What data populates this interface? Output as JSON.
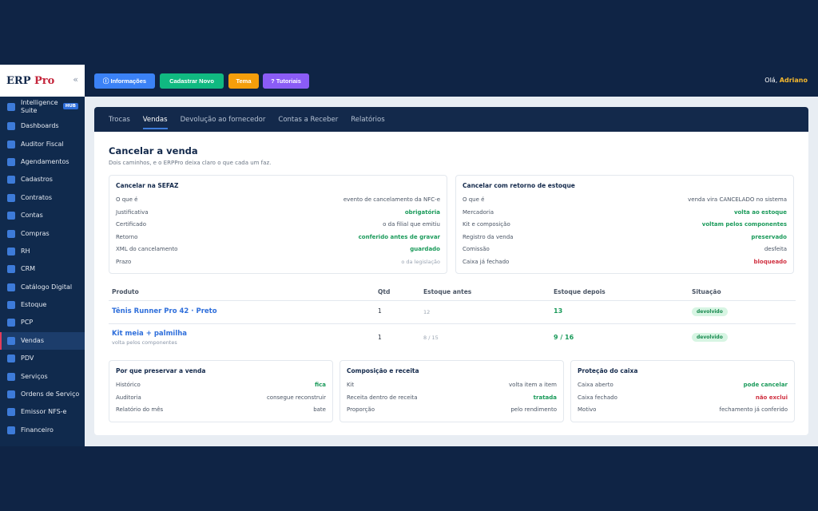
{
  "sidebar": {
    "logo_main": "ERP",
    "logo_accent": "Pro",
    "collapse_icon": "«",
    "hub_badge": "HUB",
    "items": [
      {
        "label": "Intelligence Suite"
      },
      {
        "label": "Dashboards"
      },
      {
        "label": "Auditor Fiscal"
      },
      {
        "label": "Agendamentos"
      },
      {
        "label": "Cadastros"
      },
      {
        "label": "Contratos"
      },
      {
        "label": "Contas"
      },
      {
        "label": "Compras"
      },
      {
        "label": "RH"
      },
      {
        "label": "CRM"
      },
      {
        "label": "Catálogo Digital"
      },
      {
        "label": "Estoque"
      },
      {
        "label": "PCP"
      },
      {
        "label": "Vendas"
      },
      {
        "label": "PDV"
      },
      {
        "label": "Serviços"
      },
      {
        "label": "Ordens de Serviço"
      },
      {
        "label": "Emissor NFS-e"
      },
      {
        "label": "Financeiro"
      }
    ]
  },
  "topbar": {
    "buttons": [
      {
        "label": "ⓘ Informações",
        "color": "#3b82f6"
      },
      {
        "label": "Cadastrar Novo",
        "color": "#10b981"
      },
      {
        "label": "Tema",
        "color": "#f59e0b"
      },
      {
        "label": "? Tutoriais",
        "color": "#8b5cf6"
      }
    ],
    "greeting": "Olá,",
    "user": "Adriano"
  },
  "tabs": [
    "Trocas",
    "Vendas",
    "Devolução ao fornecedor",
    "Contas a Receber",
    "Relatórios"
  ],
  "page": {
    "title": "Cancelar a venda",
    "subtitle": "Dois caminhos, e o ERPPro deixa claro o que cada um faz."
  },
  "sefaz": {
    "title": "Cancelar na SEFAZ",
    "rows": [
      {
        "k": "O que é",
        "v": "evento de cancelamento da NFC-e"
      },
      {
        "k": "Justificativa",
        "v": "obrigatória"
      },
      {
        "k": "Certificado",
        "v": "o da filial que emitiu"
      },
      {
        "k": "Retorno",
        "v": "conferido antes de gravar"
      },
      {
        "k": "XML do cancelamento",
        "v": "guardado"
      },
      {
        "k": "Prazo",
        "v": "o da legislação"
      }
    ]
  },
  "estoque": {
    "title": "Cancelar com retorno de estoque",
    "rows": [
      {
        "k": "O que é",
        "v": "venda vira CANCELADO no sistema"
      },
      {
        "k": "Mercadoria",
        "v": "volta ao estoque"
      },
      {
        "k": "Kit e composição",
        "v": "voltam pelos componentes"
      },
      {
        "k": "Registro da venda",
        "v": "preservado"
      },
      {
        "k": "Comissão",
        "v": "desfeita"
      },
      {
        "k": "Caixa já fechado",
        "v": "bloqueado"
      }
    ]
  },
  "table": {
    "headers": [
      "Produto",
      "Qtd",
      "Estoque antes",
      "Estoque depois",
      "Situação"
    ],
    "rows": [
      {
        "produto": "Tênis Runner Pro 42 · Preto",
        "sub": "",
        "qtd": "1",
        "antes": "12",
        "depois": "13",
        "situacao": "devolvido"
      },
      {
        "produto": "Kit meia + palmilha",
        "sub": "volta pelos componentes",
        "qtd": "1",
        "antes": "8 / 15",
        "depois": "9 / 16",
        "situacao": "devolvido"
      }
    ]
  },
  "preservar": {
    "title": "Por que preservar a venda",
    "rows": [
      {
        "k": "Histórico",
        "v": "fica"
      },
      {
        "k": "Auditoria",
        "v": "consegue reconstruir"
      },
      {
        "k": "Relatório do mês",
        "v": "bate"
      }
    ]
  },
  "composicao": {
    "title": "Composição e receita",
    "rows": [
      {
        "k": "Kit",
        "v": "volta item a item"
      },
      {
        "k": "Receita dentro de receita",
        "v": "tratada"
      },
      {
        "k": "Proporção",
        "v": "pelo rendimento"
      }
    ]
  },
  "caixa": {
    "title": "Proteção do caixa",
    "rows": [
      {
        "k": "Caixa aberto",
        "v": "pode cancelar"
      },
      {
        "k": "Caixa fechado",
        "v": "não exclui"
      },
      {
        "k": "Motivo",
        "v": "fechamento já conferido"
      }
    ]
  }
}
